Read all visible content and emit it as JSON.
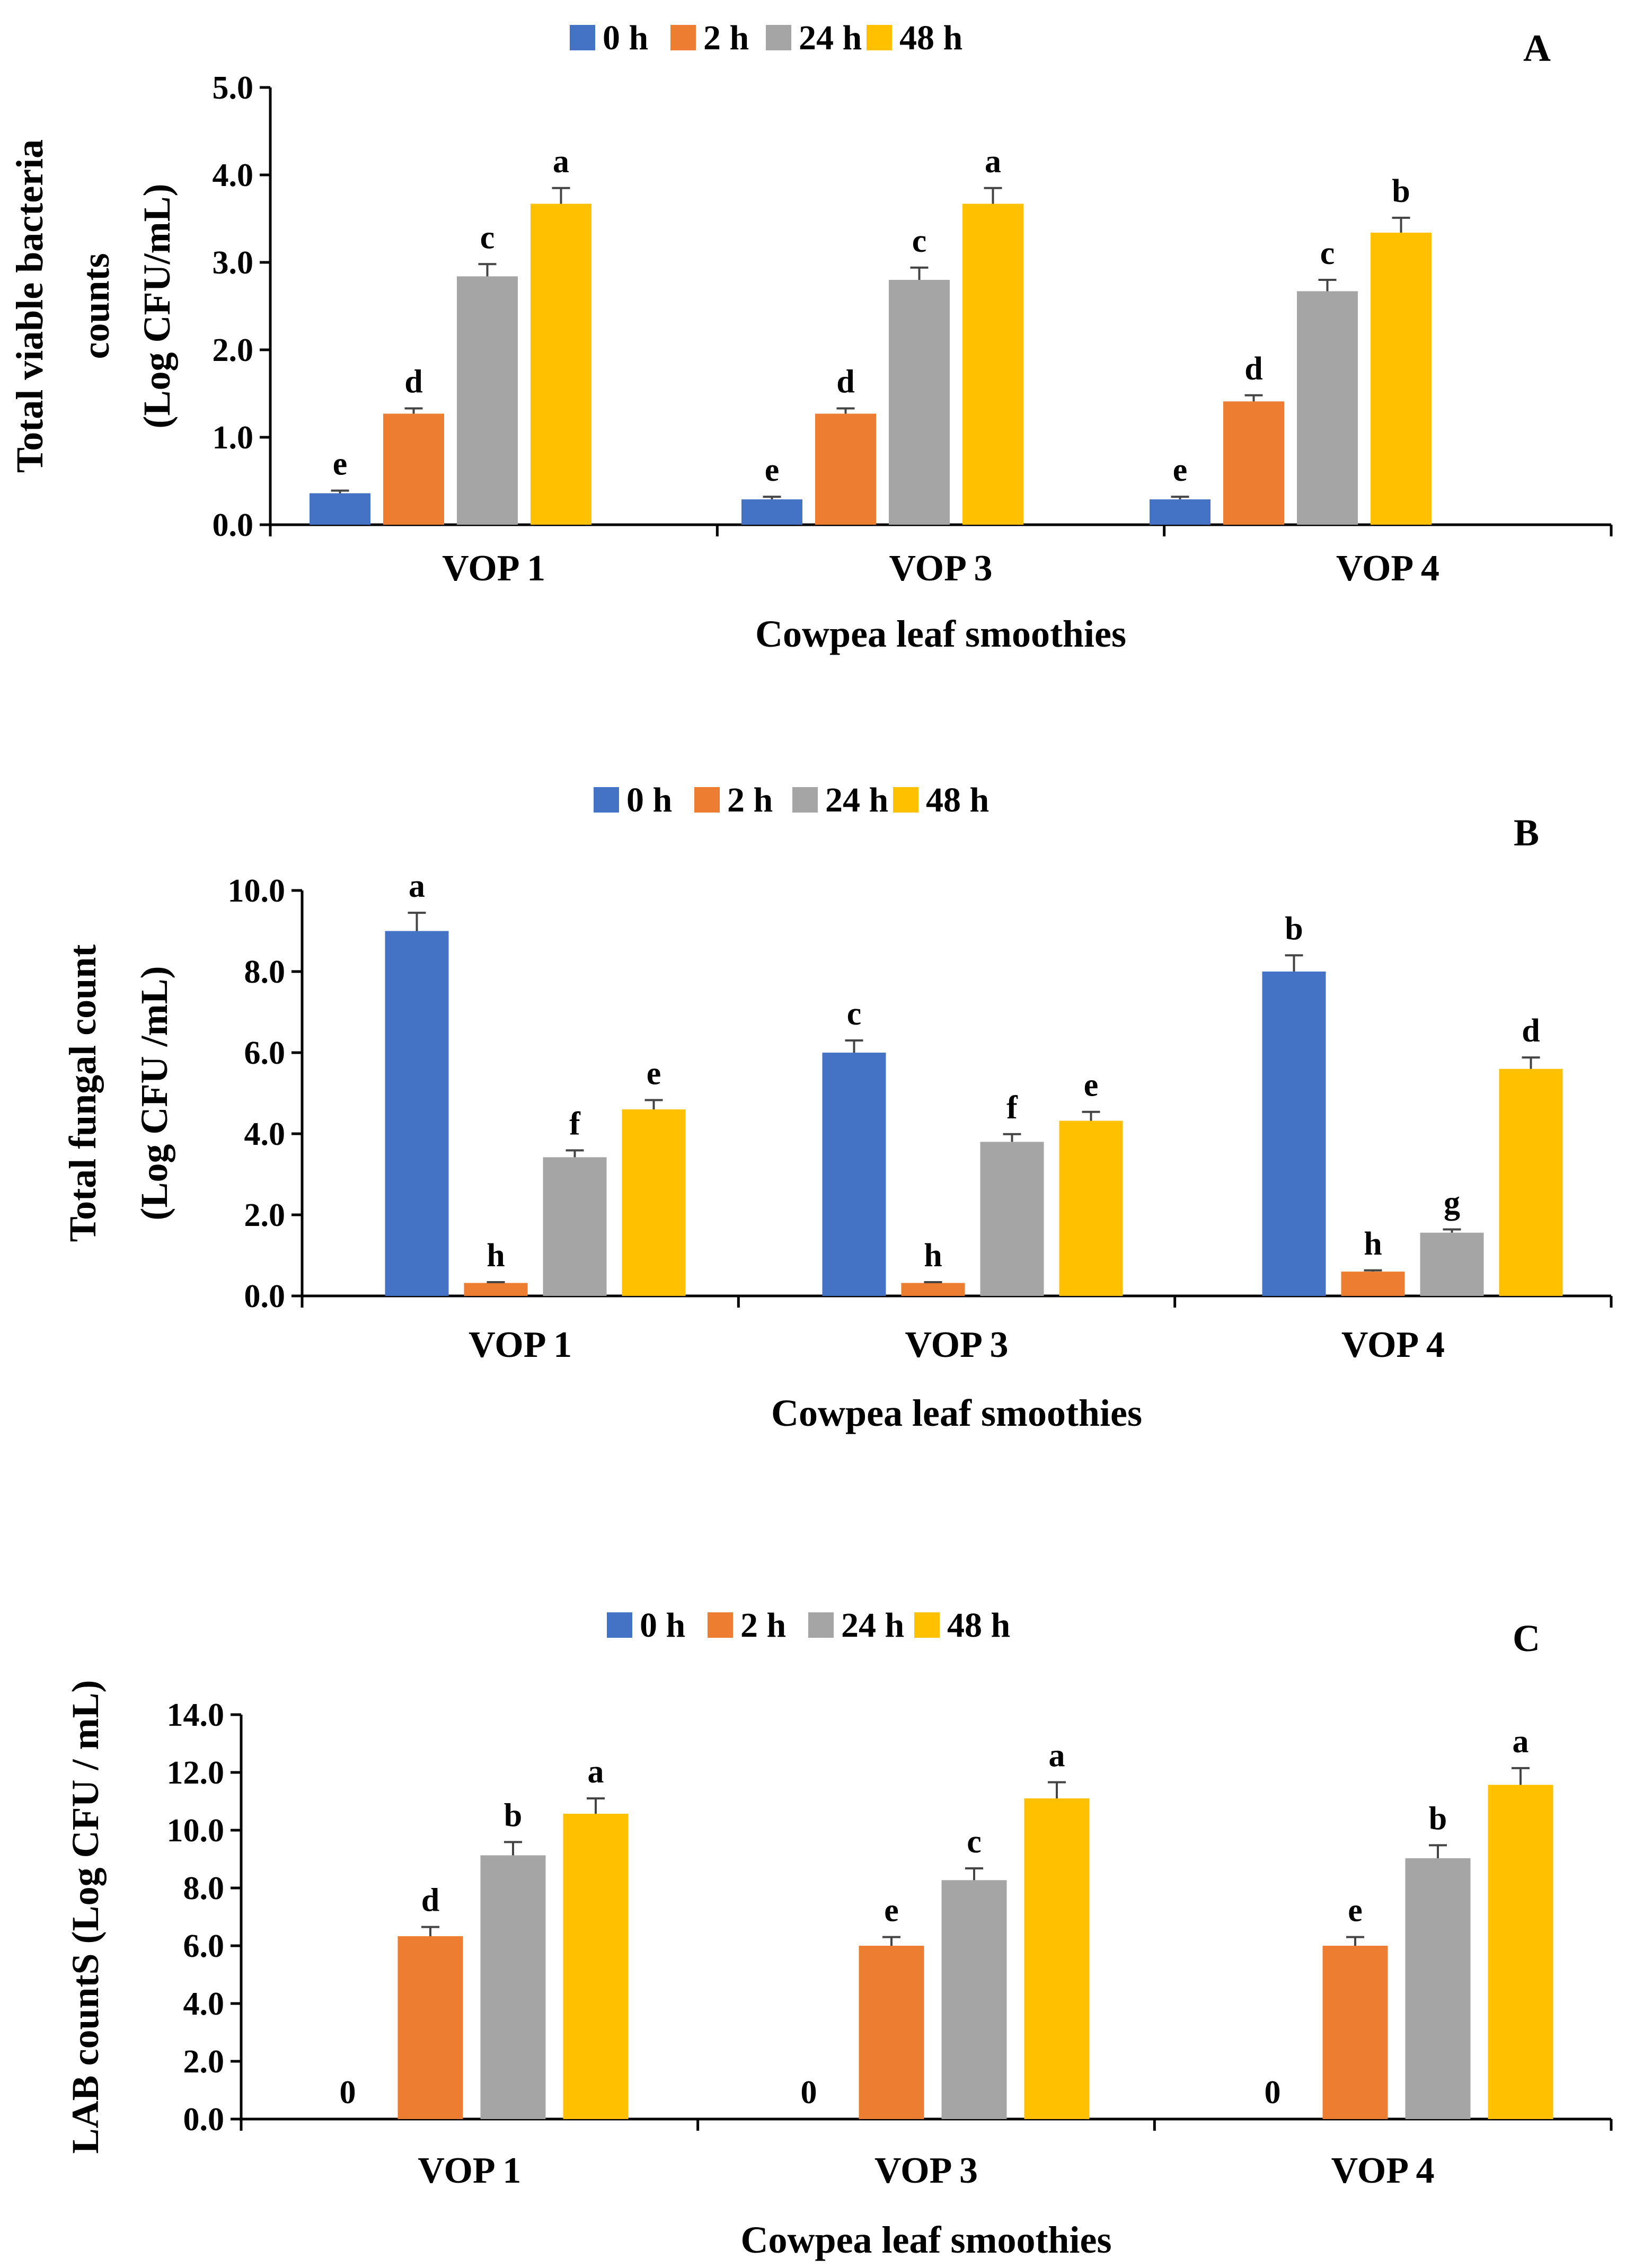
{
  "chart_data": [
    {
      "panel": "A",
      "type": "bar",
      "title": "",
      "xlabel": "Cowpea leaf smoothies",
      "ylabel_lines": [
        "Total viable bacteria",
        "counts",
        "(Log CFU/mL)"
      ],
      "categories": [
        "VOP 1",
        "VOP 3",
        "VOP 4"
      ],
      "ylim": [
        0,
        5
      ],
      "yticks": [
        "0.0",
        "1.0",
        "2.0",
        "3.0",
        "4.0",
        "5.0"
      ],
      "legend_position": "top",
      "series": [
        {
          "name": "0 h",
          "color": "#4472C4",
          "values": [
            0.36,
            0.29,
            0.29
          ],
          "errors": [
            0.03,
            0.03,
            0.03
          ],
          "labels": [
            "e",
            "e",
            "e"
          ]
        },
        {
          "name": "2 h",
          "color": "#ED7D31",
          "values": [
            1.27,
            1.27,
            1.41
          ],
          "errors": [
            0.06,
            0.06,
            0.07
          ],
          "labels": [
            "d",
            "d",
            "d"
          ]
        },
        {
          "name": "24 h",
          "color": "#A5A5A5",
          "values": [
            2.84,
            2.8,
            2.67
          ],
          "errors": [
            0.14,
            0.14,
            0.13
          ],
          "labels": [
            "c",
            "c",
            "c"
          ]
        },
        {
          "name": "48 h",
          "color": "#FFC000",
          "values": [
            3.67,
            3.67,
            3.34
          ],
          "errors": [
            0.18,
            0.18,
            0.17
          ],
          "labels": [
            "a",
            "a",
            "b"
          ]
        }
      ]
    },
    {
      "panel": "B",
      "type": "bar",
      "title": "",
      "xlabel": "Cowpea leaf smoothies",
      "ylabel_lines": [
        "Total fungal count",
        "(Log CFU /mL)"
      ],
      "categories": [
        "VOP 1",
        "VOP 3",
        "VOP 4"
      ],
      "ylim": [
        0,
        10
      ],
      "yticks": [
        "0.0",
        "2.0",
        "4.0",
        "6.0",
        "8.0",
        "10.0"
      ],
      "legend_position": "top",
      "series": [
        {
          "name": "0 h",
          "color": "#4472C4",
          "values": [
            9.0,
            6.0,
            8.0
          ],
          "errors": [
            0.45,
            0.3,
            0.4
          ],
          "labels": [
            "a",
            "c",
            "b"
          ]
        },
        {
          "name": "2 h",
          "color": "#ED7D31",
          "values": [
            0.32,
            0.32,
            0.6
          ],
          "errors": [
            0.02,
            0.02,
            0.03
          ],
          "labels": [
            "h",
            "h",
            "h"
          ]
        },
        {
          "name": "24 h",
          "color": "#A5A5A5",
          "values": [
            3.42,
            3.8,
            1.56
          ],
          "errors": [
            0.17,
            0.19,
            0.08
          ],
          "labels": [
            "f",
            "f",
            "g"
          ]
        },
        {
          "name": "48 h",
          "color": "#FFC000",
          "values": [
            4.6,
            4.32,
            5.6
          ],
          "errors": [
            0.23,
            0.22,
            0.28
          ],
          "labels": [
            "e",
            "e",
            "d"
          ]
        }
      ]
    },
    {
      "panel": "C",
      "type": "bar",
      "title": "",
      "xlabel": "Cowpea leaf smoothies",
      "ylabel_lines": [
        "LAB countS  (Log CFU / mL)"
      ],
      "categories": [
        "VOP 1",
        "VOP 3",
        "VOP 4"
      ],
      "ylim": [
        0,
        14
      ],
      "yticks": [
        "0.0",
        "2.0",
        "4.0",
        "6.0",
        "8.0",
        "10.0",
        "12.0",
        "14.0"
      ],
      "legend_position": "top",
      "series": [
        {
          "name": "0 h",
          "color": "#4472C4",
          "values": [
            0,
            0,
            0
          ],
          "errors": [
            0,
            0,
            0
          ],
          "labels": [
            "0",
            "0",
            "0"
          ]
        },
        {
          "name": "2 h",
          "color": "#ED7D31",
          "values": [
            6.33,
            6.0,
            6.0
          ],
          "errors": [
            0.32,
            0.3,
            0.3
          ],
          "labels": [
            "d",
            "e",
            "e"
          ]
        },
        {
          "name": "24 h",
          "color": "#A5A5A5",
          "values": [
            9.13,
            8.27,
            9.03
          ],
          "errors": [
            0.46,
            0.41,
            0.45
          ],
          "labels": [
            "b",
            "c",
            "b"
          ]
        },
        {
          "name": "48 h",
          "color": "#FFC000",
          "values": [
            10.57,
            11.1,
            11.57
          ],
          "errors": [
            0.53,
            0.56,
            0.58
          ],
          "labels": [
            "a",
            "a",
            "a"
          ]
        }
      ]
    }
  ]
}
